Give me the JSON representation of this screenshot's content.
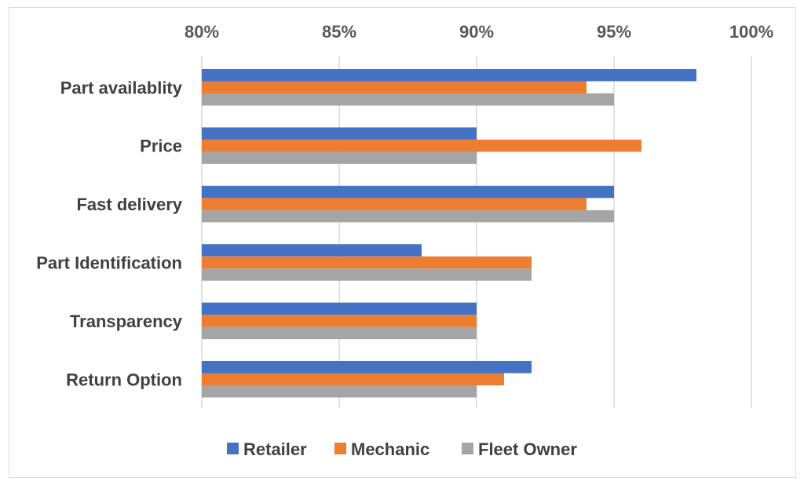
{
  "chart_data": {
    "type": "bar",
    "orientation": "horizontal",
    "title": "",
    "xlabel": "",
    "ylabel": "",
    "x_ticks": [
      "80%",
      "85%",
      "90%",
      "95%",
      "100%"
    ],
    "x_axis_position": "top",
    "xlim": [
      80,
      100
    ],
    "grid": true,
    "legend_position": "bottom",
    "categories": [
      "Part availablity",
      "Price",
      "Fast delivery",
      "Part Identification",
      "Transparency",
      "Return Option"
    ],
    "series": [
      {
        "name": "Retailer",
        "color": "#4472c4",
        "values": [
          98,
          90,
          95,
          88,
          90,
          92
        ]
      },
      {
        "name": "Mechanic",
        "color": "#ed7d31",
        "values": [
          94,
          96,
          94,
          92,
          90,
          91
        ]
      },
      {
        "name": "Fleet Owner",
        "color": "#a5a5a5",
        "values": [
          95,
          90,
          95,
          92,
          90,
          90
        ]
      }
    ]
  }
}
